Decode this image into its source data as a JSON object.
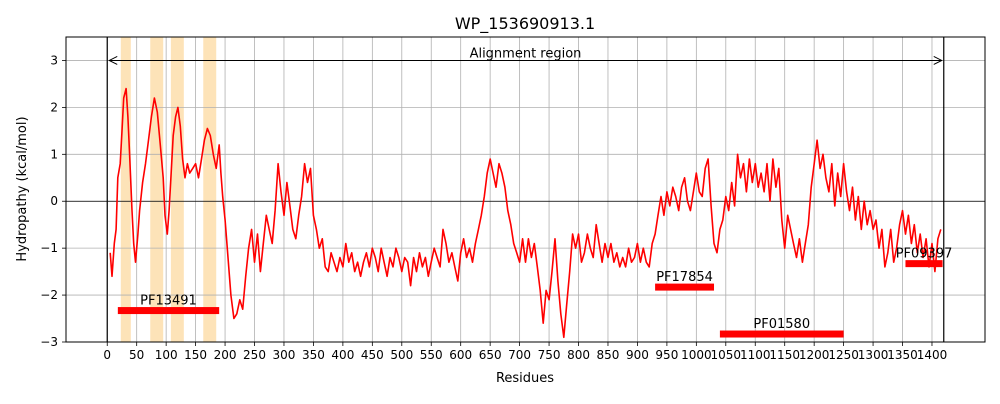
{
  "chart_data": {
    "type": "line",
    "title": "WP_153690913.1",
    "xlabel": "Residues",
    "ylabel": "Hydropathy (kcal/mol)",
    "xlim": [
      -70,
      1490
    ],
    "ylim": [
      -3,
      3.5
    ],
    "xticks": [
      0,
      50,
      100,
      150,
      200,
      250,
      300,
      350,
      400,
      450,
      500,
      550,
      600,
      650,
      700,
      750,
      800,
      850,
      900,
      950,
      1000,
      1050,
      1100,
      1150,
      1200,
      1250,
      1300,
      1350,
      1400
    ],
    "yticks": [
      -3,
      -2,
      -1,
      0,
      1,
      2,
      3
    ],
    "grid": true,
    "colors": {
      "line": "#ff0000",
      "domain_bar": "#ff0000",
      "tm_region": "#fde3b8",
      "grid": "#b0b0b0"
    },
    "alignment_region": {
      "label": "Alignment region",
      "start": 0,
      "end": 1420,
      "y": 3
    },
    "highlighted_regions": [
      [
        23,
        40
      ],
      [
        73,
        95
      ],
      [
        108,
        130
      ],
      [
        163,
        185
      ]
    ],
    "domains": [
      {
        "name": "PF13491",
        "start": 18,
        "end": 190,
        "y": -2.33
      },
      {
        "name": "PF17854",
        "start": 930,
        "end": 1030,
        "y": -1.83
      },
      {
        "name": "PF01580",
        "start": 1040,
        "end": 1250,
        "y": -2.83
      },
      {
        "name": "PF09397",
        "start": 1355,
        "end": 1418,
        "y": -1.33
      }
    ],
    "series": [
      {
        "values": [
          [
            5,
            -1.1
          ],
          [
            8,
            -1.6
          ],
          [
            12,
            -0.9
          ],
          [
            15,
            -0.6
          ],
          [
            18,
            0.5
          ],
          [
            22,
            0.8
          ],
          [
            25,
            1.5
          ],
          [
            28,
            2.2
          ],
          [
            32,
            2.4
          ],
          [
            35,
            1.8
          ],
          [
            38,
            1.0
          ],
          [
            42,
            -0.2
          ],
          [
            45,
            -0.9
          ],
          [
            48,
            -1.3
          ],
          [
            52,
            -0.7
          ],
          [
            55,
            -0.2
          ],
          [
            60,
            0.4
          ],
          [
            65,
            0.8
          ],
          [
            70,
            1.3
          ],
          [
            75,
            1.8
          ],
          [
            80,
            2.2
          ],
          [
            85,
            1.9
          ],
          [
            90,
            1.2
          ],
          [
            95,
            0.5
          ],
          [
            98,
            -0.3
          ],
          [
            102,
            -0.7
          ],
          [
            105,
            -0.2
          ],
          [
            108,
            0.5
          ],
          [
            112,
            1.4
          ],
          [
            116,
            1.8
          ],
          [
            120,
            2.0
          ],
          [
            124,
            1.6
          ],
          [
            128,
            0.9
          ],
          [
            132,
            0.5
          ],
          [
            136,
            0.8
          ],
          [
            140,
            0.6
          ],
          [
            145,
            0.7
          ],
          [
            150,
            0.8
          ],
          [
            155,
            0.5
          ],
          [
            160,
            0.9
          ],
          [
            165,
            1.3
          ],
          [
            170,
            1.55
          ],
          [
            175,
            1.4
          ],
          [
            180,
            1.0
          ],
          [
            185,
            0.7
          ],
          [
            190,
            1.2
          ],
          [
            193,
            0.6
          ],
          [
            196,
            0.1
          ],
          [
            200,
            -0.4
          ],
          [
            205,
            -1.2
          ],
          [
            210,
            -2.0
          ],
          [
            215,
            -2.5
          ],
          [
            220,
            -2.4
          ],
          [
            225,
            -2.1
          ],
          [
            230,
            -2.3
          ],
          [
            235,
            -1.6
          ],
          [
            240,
            -1.0
          ],
          [
            245,
            -0.6
          ],
          [
            250,
            -1.3
          ],
          [
            255,
            -0.7
          ],
          [
            260,
            -1.5
          ],
          [
            265,
            -0.9
          ],
          [
            270,
            -0.3
          ],
          [
            275,
            -0.6
          ],
          [
            280,
            -0.9
          ],
          [
            285,
            -0.2
          ],
          [
            290,
            0.8
          ],
          [
            295,
            0.2
          ],
          [
            300,
            -0.3
          ],
          [
            305,
            0.4
          ],
          [
            310,
            -0.1
          ],
          [
            315,
            -0.6
          ],
          [
            320,
            -0.8
          ],
          [
            325,
            -0.3
          ],
          [
            330,
            0.1
          ],
          [
            335,
            0.8
          ],
          [
            340,
            0.4
          ],
          [
            345,
            0.7
          ],
          [
            350,
            -0.3
          ],
          [
            355,
            -0.6
          ],
          [
            360,
            -1.0
          ],
          [
            365,
            -0.8
          ],
          [
            370,
            -1.4
          ],
          [
            375,
            -1.5
          ],
          [
            380,
            -1.1
          ],
          [
            385,
            -1.3
          ],
          [
            390,
            -1.5
          ],
          [
            395,
            -1.2
          ],
          [
            400,
            -1.4
          ],
          [
            405,
            -0.9
          ],
          [
            410,
            -1.3
          ],
          [
            415,
            -1.1
          ],
          [
            420,
            -1.5
          ],
          [
            425,
            -1.3
          ],
          [
            430,
            -1.6
          ],
          [
            435,
            -1.3
          ],
          [
            440,
            -1.1
          ],
          [
            445,
            -1.4
          ],
          [
            450,
            -1.0
          ],
          [
            455,
            -1.2
          ],
          [
            460,
            -1.5
          ],
          [
            465,
            -1.0
          ],
          [
            470,
            -1.3
          ],
          [
            475,
            -1.6
          ],
          [
            480,
            -1.2
          ],
          [
            485,
            -1.4
          ],
          [
            490,
            -1.0
          ],
          [
            495,
            -1.2
          ],
          [
            500,
            -1.5
          ],
          [
            505,
            -1.2
          ],
          [
            510,
            -1.3
          ],
          [
            515,
            -1.8
          ],
          [
            520,
            -1.2
          ],
          [
            525,
            -1.5
          ],
          [
            530,
            -1.1
          ],
          [
            535,
            -1.4
          ],
          [
            540,
            -1.2
          ],
          [
            545,
            -1.6
          ],
          [
            550,
            -1.3
          ],
          [
            555,
            -1.0
          ],
          [
            560,
            -1.2
          ],
          [
            565,
            -1.4
          ],
          [
            570,
            -0.6
          ],
          [
            575,
            -0.9
          ],
          [
            580,
            -1.3
          ],
          [
            585,
            -1.1
          ],
          [
            590,
            -1.4
          ],
          [
            595,
            -1.7
          ],
          [
            600,
            -1.1
          ],
          [
            605,
            -0.8
          ],
          [
            610,
            -1.2
          ],
          [
            615,
            -1.0
          ],
          [
            620,
            -1.3
          ],
          [
            625,
            -0.9
          ],
          [
            630,
            -0.6
          ],
          [
            635,
            -0.3
          ],
          [
            640,
            0.1
          ],
          [
            645,
            0.6
          ],
          [
            650,
            0.9
          ],
          [
            655,
            0.6
          ],
          [
            660,
            0.3
          ],
          [
            665,
            0.8
          ],
          [
            670,
            0.6
          ],
          [
            675,
            0.3
          ],
          [
            680,
            -0.2
          ],
          [
            685,
            -0.5
          ],
          [
            690,
            -0.9
          ],
          [
            695,
            -1.1
          ],
          [
            700,
            -1.3
          ],
          [
            705,
            -0.8
          ],
          [
            710,
            -1.3
          ],
          [
            715,
            -0.8
          ],
          [
            720,
            -1.2
          ],
          [
            725,
            -0.9
          ],
          [
            730,
            -1.4
          ],
          [
            735,
            -1.9
          ],
          [
            740,
            -2.6
          ],
          [
            745,
            -1.9
          ],
          [
            750,
            -2.1
          ],
          [
            755,
            -1.5
          ],
          [
            760,
            -0.8
          ],
          [
            765,
            -1.7
          ],
          [
            770,
            -2.4
          ],
          [
            775,
            -2.9
          ],
          [
            780,
            -2.2
          ],
          [
            785,
            -1.5
          ],
          [
            790,
            -0.7
          ],
          [
            795,
            -1.0
          ],
          [
            800,
            -0.7
          ],
          [
            805,
            -1.3
          ],
          [
            810,
            -1.1
          ],
          [
            815,
            -0.7
          ],
          [
            820,
            -1.0
          ],
          [
            825,
            -1.2
          ],
          [
            830,
            -0.5
          ],
          [
            835,
            -0.9
          ],
          [
            840,
            -1.3
          ],
          [
            845,
            -0.9
          ],
          [
            850,
            -1.2
          ],
          [
            855,
            -0.9
          ],
          [
            860,
            -1.3
          ],
          [
            865,
            -1.1
          ],
          [
            870,
            -1.4
          ],
          [
            875,
            -1.2
          ],
          [
            880,
            -1.4
          ],
          [
            885,
            -1.0
          ],
          [
            890,
            -1.3
          ],
          [
            895,
            -1.2
          ],
          [
            900,
            -0.9
          ],
          [
            905,
            -1.3
          ],
          [
            910,
            -1.0
          ],
          [
            915,
            -1.3
          ],
          [
            920,
            -1.4
          ],
          [
            925,
            -0.9
          ],
          [
            930,
            -0.7
          ],
          [
            935,
            -0.3
          ],
          [
            940,
            0.1
          ],
          [
            945,
            -0.3
          ],
          [
            950,
            0.2
          ],
          [
            955,
            -0.1
          ],
          [
            960,
            0.3
          ],
          [
            965,
            0.1
          ],
          [
            970,
            -0.2
          ],
          [
            975,
            0.3
          ],
          [
            980,
            0.5
          ],
          [
            985,
            0.0
          ],
          [
            990,
            -0.2
          ],
          [
            995,
            0.2
          ],
          [
            1000,
            0.6
          ],
          [
            1005,
            0.2
          ],
          [
            1010,
            0.1
          ],
          [
            1015,
            0.7
          ],
          [
            1020,
            0.9
          ],
          [
            1025,
            -0.1
          ],
          [
            1030,
            -0.9
          ],
          [
            1035,
            -1.1
          ],
          [
            1040,
            -0.6
          ],
          [
            1045,
            -0.4
          ],
          [
            1050,
            0.1
          ],
          [
            1055,
            -0.2
          ],
          [
            1060,
            0.4
          ],
          [
            1065,
            -0.1
          ],
          [
            1070,
            1.0
          ],
          [
            1075,
            0.5
          ],
          [
            1080,
            0.8
          ],
          [
            1085,
            0.2
          ],
          [
            1090,
            0.9
          ],
          [
            1095,
            0.4
          ],
          [
            1100,
            0.8
          ],
          [
            1105,
            0.3
          ],
          [
            1110,
            0.6
          ],
          [
            1115,
            0.2
          ],
          [
            1120,
            0.8
          ],
          [
            1125,
            0.0
          ],
          [
            1130,
            0.9
          ],
          [
            1135,
            0.3
          ],
          [
            1140,
            0.7
          ],
          [
            1145,
            -0.4
          ],
          [
            1150,
            -1.0
          ],
          [
            1155,
            -0.3
          ],
          [
            1160,
            -0.6
          ],
          [
            1165,
            -0.9
          ],
          [
            1170,
            -1.2
          ],
          [
            1175,
            -0.8
          ],
          [
            1180,
            -1.3
          ],
          [
            1185,
            -0.9
          ],
          [
            1190,
            -0.5
          ],
          [
            1195,
            0.3
          ],
          [
            1200,
            0.8
          ],
          [
            1205,
            1.3
          ],
          [
            1210,
            0.7
          ],
          [
            1215,
            1.0
          ],
          [
            1220,
            0.5
          ],
          [
            1225,
            0.2
          ],
          [
            1230,
            0.8
          ],
          [
            1235,
            -0.1
          ],
          [
            1240,
            0.6
          ],
          [
            1245,
            0.1
          ],
          [
            1250,
            0.8
          ],
          [
            1255,
            0.2
          ],
          [
            1260,
            -0.2
          ],
          [
            1265,
            0.3
          ],
          [
            1270,
            -0.4
          ],
          [
            1275,
            0.1
          ],
          [
            1280,
            -0.6
          ],
          [
            1285,
            0.0
          ],
          [
            1290,
            -0.5
          ],
          [
            1295,
            -0.2
          ],
          [
            1300,
            -0.6
          ],
          [
            1305,
            -0.4
          ],
          [
            1310,
            -1.0
          ],
          [
            1315,
            -0.6
          ],
          [
            1320,
            -1.4
          ],
          [
            1325,
            -1.1
          ],
          [
            1330,
            -0.6
          ],
          [
            1335,
            -1.3
          ],
          [
            1340,
            -1.0
          ],
          [
            1345,
            -0.5
          ],
          [
            1350,
            -0.2
          ],
          [
            1355,
            -0.7
          ],
          [
            1360,
            -0.3
          ],
          [
            1365,
            -0.9
          ],
          [
            1370,
            -0.5
          ],
          [
            1375,
            -1.1
          ],
          [
            1380,
            -0.7
          ],
          [
            1385,
            -1.2
          ],
          [
            1390,
            -0.8
          ],
          [
            1395,
            -1.4
          ],
          [
            1400,
            -0.9
          ],
          [
            1405,
            -1.5
          ],
          [
            1410,
            -0.8
          ],
          [
            1415,
            -0.6
          ]
        ]
      }
    ]
  }
}
